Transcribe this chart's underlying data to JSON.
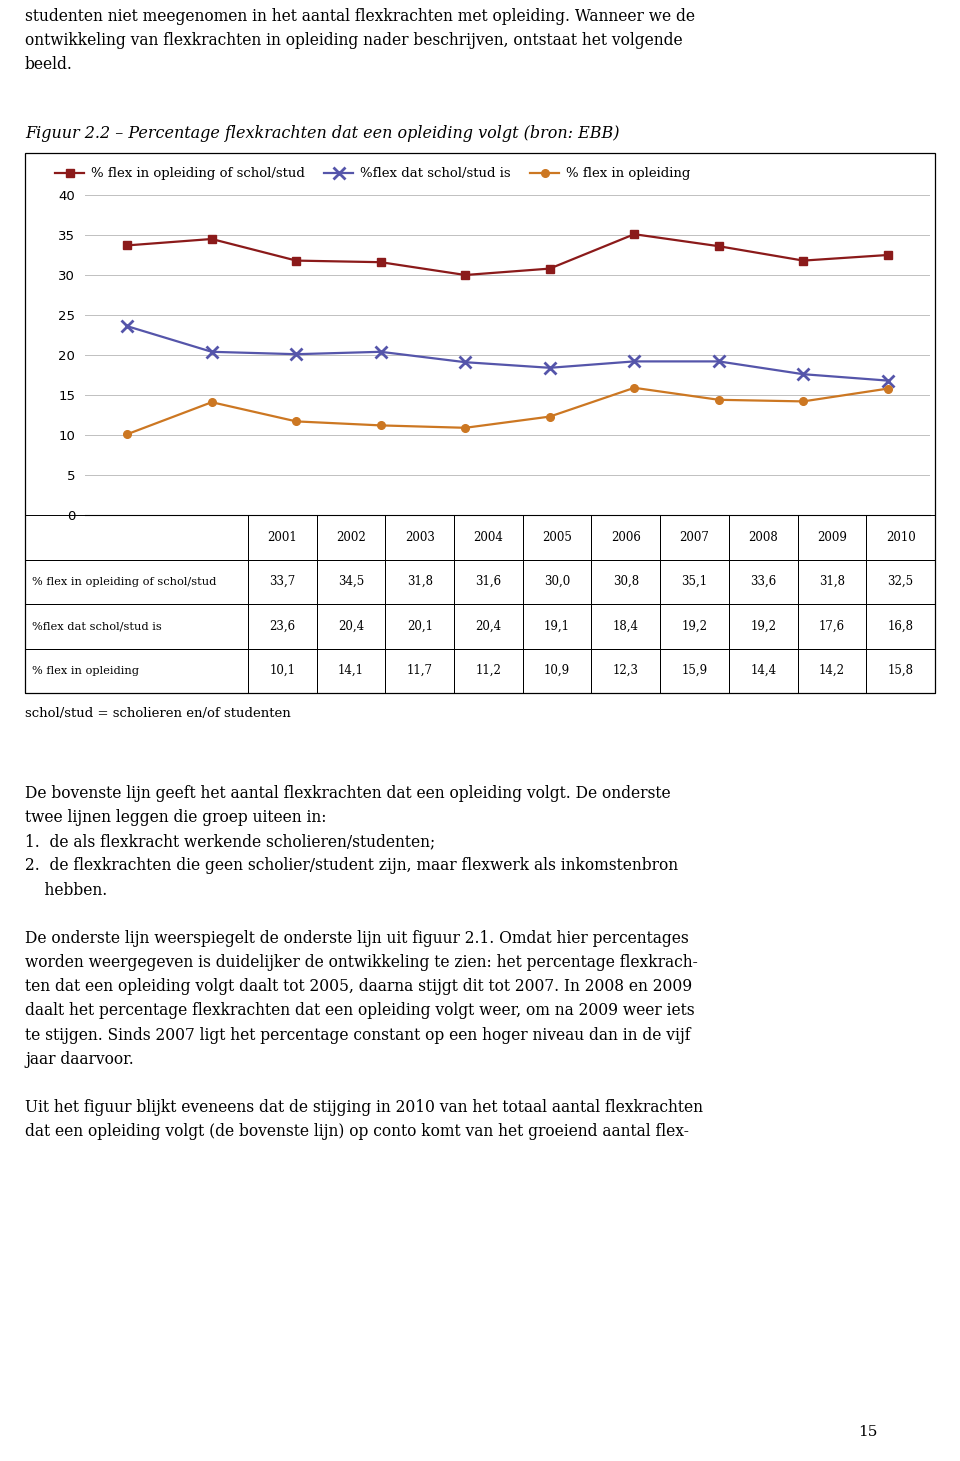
{
  "title": "Figuur 2.2 – Percentage flexkrachten dat een opleiding volgt (bron: EBB)",
  "years": [
    2001,
    2002,
    2003,
    2004,
    2005,
    2006,
    2007,
    2008,
    2009,
    2010
  ],
  "series1_label": "% flex in opleiding of schol/stud",
  "series1_values": [
    33.7,
    34.5,
    31.8,
    31.6,
    30.0,
    30.8,
    35.1,
    33.6,
    31.8,
    32.5
  ],
  "series1_color": "#8B1A1A",
  "series2_label": "%flex dat schol/stud is",
  "series2_values": [
    23.6,
    20.4,
    20.1,
    20.4,
    19.1,
    18.4,
    19.2,
    19.2,
    17.6,
    16.8
  ],
  "series2_color": "#5555AA",
  "series3_label": "% flex in opleiding",
  "series3_values": [
    10.1,
    14.1,
    11.7,
    11.2,
    10.9,
    12.3,
    15.9,
    14.4,
    14.2,
    15.8
  ],
  "series3_color": "#CC7722",
  "ylim": [
    0,
    40
  ],
  "yticks": [
    0,
    5,
    10,
    15,
    20,
    25,
    30,
    35,
    40
  ],
  "table_row1": [
    "33,7",
    "34,5",
    "31,8",
    "31,6",
    "30,0",
    "30,8",
    "35,1",
    "33,6",
    "31,8",
    "32,5"
  ],
  "table_row2": [
    "23,6",
    "20,4",
    "20,1",
    "20,4",
    "19,1",
    "18,4",
    "19,2",
    "19,2",
    "17,6",
    "16,8"
  ],
  "table_row3": [
    "10,1",
    "14,1",
    "11,7",
    "11,2",
    "10,9",
    "12,3",
    "15,9",
    "14,4",
    "14,2",
    "15,8"
  ],
  "row_labels": [
    "% flex in opleiding of schol/stud",
    "%flex dat schol/stud is",
    "% flex in opleiding"
  ],
  "col_labels": [
    "2001",
    "2002",
    "2003",
    "2004",
    "2005",
    "2006",
    "2007",
    "2008",
    "2009",
    "2010"
  ],
  "footnote": "schol/stud = scholieren en/of studenten",
  "page_number": "15",
  "background_color": "#FFFFFF",
  "top_text_line1": "studenten niet meegenomen in het aantal flexkrachten met opleiding. Wanneer we de",
  "top_text_line2": "ontwikkeling van flexkrachten in opleiding nader beschrijven, ontstaat het volgende",
  "top_text_line3": "beeld.",
  "body_para1_line1": "De bovenste lijn geeft het aantal flexkrachten dat een opleiding volgt. De onderste",
  "body_para1_line2": "twee lijnen leggen die groep uiteen in:",
  "body_para1_line3": "1.  de als flexkracht werkende scholieren/studenten;",
  "body_para1_line4": "2.  de flexkrachten die geen scholier/student zijn, maar flexwerk als inkomstenbron",
  "body_para1_line5": "    hebben.",
  "body_para2_line1": "De onderste lijn weerspiegelt de onderste lijn uit figuur 2.1. Omdat hier percentages",
  "body_para2_line2": "worden weergegeven is duidelijker de ontwikkeling te zien: het percentage flexkrach-",
  "body_para2_line3": "ten dat een opleiding volgt daalt tot 2005, daarna stijgt dit tot 2007. In 2008 en 2009",
  "body_para2_line4": "daalt het percentage flexkrachten dat een opleiding volgt weer, om na 2009 weer iets",
  "body_para2_line5": "te stijgen. Sinds 2007 ligt het percentage constant op een hoger niveau dan in de vijf",
  "body_para2_line6": "jaar daarvoor.",
  "body_para3_line1": "Uit het figuur blijkt eveneens dat de stijging in 2010 van het totaal aantal flexkrachten",
  "body_para3_line2": "dat een opleiding volgt (de bovenste lijn) op conto komt van het groeiend aantal flex-"
}
